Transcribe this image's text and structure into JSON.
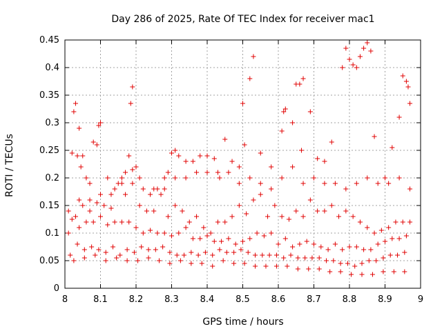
{
  "chart_data": {
    "type": "scatter",
    "title": "Day 286 of 2025, Rate Of TEC Index for receiver mac1",
    "xlabel": "GPS time / hours",
    "ylabel": "ROTI / TECUs",
    "xlim": [
      8,
      9
    ],
    "ylim": [
      0,
      0.45
    ],
    "xticks": [
      "8",
      "8.1",
      "8.2",
      "8.3",
      "8.4",
      "8.5",
      "8.6",
      "8.7",
      "8.8",
      "8.9",
      "9"
    ],
    "yticks": [
      "0",
      "0.05",
      "0.1",
      "0.15",
      "0.2",
      "0.25",
      "0.3",
      "0.35",
      "0.4",
      "0.45"
    ],
    "grid": true,
    "marker": "+",
    "color": "#e00000",
    "series": [
      {
        "name": "ROTI",
        "x": [
          8.02,
          8.025,
          8.03,
          8.035,
          8.04,
          8.045,
          8.05,
          8.06,
          8.07,
          8.08,
          8.09,
          8.095,
          8.1,
          8.12,
          8.14,
          8.16,
          8.17,
          8.18,
          8.185,
          8.19,
          8.2,
          8.21,
          8.24,
          8.26,
          8.28,
          8.29,
          8.3,
          8.31,
          8.32,
          8.34,
          8.36,
          8.38,
          8.4,
          8.42,
          8.435,
          8.45,
          8.47,
          8.49,
          8.5,
          8.505,
          8.52,
          8.53,
          8.55,
          8.58,
          8.61,
          8.615,
          8.62,
          8.64,
          8.65,
          8.66,
          8.665,
          8.67,
          8.69,
          8.71,
          8.73,
          8.75,
          8.78,
          8.79,
          8.8,
          8.81,
          8.82,
          8.83,
          8.84,
          8.85,
          8.86,
          8.87,
          8.9,
          8.92,
          8.94,
          8.95,
          8.96,
          8.965,
          8.97,
          8.01,
          8.03,
          8.05,
          8.07,
          8.09,
          8.11,
          8.13,
          8.15,
          8.17,
          8.19,
          8.21,
          8.23,
          8.25,
          8.27,
          8.29,
          8.31,
          8.33,
          8.35,
          8.37,
          8.39,
          8.41,
          8.43,
          8.45,
          8.47,
          8.49,
          8.51,
          8.53,
          8.55,
          8.57,
          8.59,
          8.61,
          8.63,
          8.65,
          8.67,
          8.69,
          8.71,
          8.73,
          8.75,
          8.77,
          8.79,
          8.81,
          8.83,
          8.85,
          8.87,
          8.89,
          8.91,
          8.93,
          8.95,
          8.97,
          8.02,
          8.04,
          8.06,
          8.08,
          8.1,
          8.12,
          8.14,
          8.16,
          8.18,
          8.2,
          8.22,
          8.24,
          8.26,
          8.28,
          8.3,
          8.32,
          8.34,
          8.36,
          8.38,
          8.4,
          8.42,
          8.44,
          8.46,
          8.48,
          8.5,
          8.52,
          8.54,
          8.56,
          8.58,
          8.6,
          8.62,
          8.64,
          8.66,
          8.68,
          8.7,
          8.72,
          8.74,
          8.76,
          8.78,
          8.8,
          8.82,
          8.84,
          8.86,
          8.88,
          8.9,
          8.92,
          8.94,
          8.96,
          8.015,
          8.035,
          8.055,
          8.075,
          8.095,
          8.115,
          8.135,
          8.155,
          8.175,
          8.195,
          8.215,
          8.235,
          8.255,
          8.275,
          8.295,
          8.315,
          8.335,
          8.355,
          8.375,
          8.395,
          8.415,
          8.435,
          8.455,
          8.475,
          8.495,
          8.515,
          8.535,
          8.555,
          8.575,
          8.595,
          8.615,
          8.635,
          8.655,
          8.675,
          8.695,
          8.715,
          8.735,
          8.755,
          8.775,
          8.795,
          8.815,
          8.835,
          8.855,
          8.875,
          8.895,
          8.915,
          8.935,
          8.955,
          8.01,
          8.04,
          8.07,
          8.1,
          8.13,
          8.16,
          8.19,
          8.22,
          8.25,
          8.28,
          8.31,
          8.34,
          8.37,
          8.4,
          8.43,
          8.46,
          8.49,
          8.52,
          8.55,
          8.58,
          8.61,
          8.64,
          8.67,
          8.7,
          8.73,
          8.76,
          8.79,
          8.82,
          8.85,
          8.88,
          8.91,
          8.94,
          8.97,
          8.025,
          8.055,
          8.085,
          8.115,
          8.145,
          8.175,
          8.205,
          8.235,
          8.265,
          8.295,
          8.325,
          8.355,
          8.385,
          8.415,
          8.445,
          8.475,
          8.505,
          8.535,
          8.565,
          8.595,
          8.625,
          8.655,
          8.685,
          8.715,
          8.745,
          8.775,
          8.805,
          8.835,
          8.865,
          8.895,
          8.925,
          8.955
        ],
        "y": [
          0.245,
          0.32,
          0.335,
          0.24,
          0.29,
          0.22,
          0.24,
          0.2,
          0.19,
          0.265,
          0.26,
          0.295,
          0.3,
          0.2,
          0.18,
          0.2,
          0.21,
          0.24,
          0.335,
          0.365,
          0.22,
          0.2,
          0.17,
          0.18,
          0.18,
          0.21,
          0.245,
          0.25,
          0.24,
          0.23,
          0.23,
          0.24,
          0.24,
          0.235,
          0.2,
          0.27,
          0.23,
          0.22,
          0.335,
          0.26,
          0.38,
          0.42,
          0.245,
          0.22,
          0.285,
          0.32,
          0.325,
          0.3,
          0.37,
          0.37,
          0.25,
          0.38,
          0.32,
          0.235,
          0.23,
          0.265,
          0.4,
          0.435,
          0.415,
          0.405,
          0.4,
          0.42,
          0.435,
          0.445,
          0.43,
          0.275,
          0.2,
          0.255,
          0.31,
          0.385,
          0.375,
          0.365,
          0.335,
          0.1,
          0.13,
          0.15,
          0.14,
          0.155,
          0.15,
          0.145,
          0.19,
          0.17,
          0.215,
          0.15,
          0.14,
          0.14,
          0.17,
          0.13,
          0.15,
          0.14,
          0.12,
          0.13,
          0.11,
          0.1,
          0.12,
          0.12,
          0.13,
          0.15,
          0.135,
          0.16,
          0.17,
          0.13,
          0.15,
          0.13,
          0.125,
          0.14,
          0.13,
          0.16,
          0.14,
          0.14,
          0.15,
          0.13,
          0.14,
          0.13,
          0.12,
          0.11,
          0.1,
          0.105,
          0.11,
          0.12,
          0.12,
          0.12,
          0.125,
          0.11,
          0.12,
          0.12,
          0.13,
          0.115,
          0.12,
          0.12,
          0.12,
          0.11,
          0.1,
          0.105,
          0.1,
          0.1,
          0.095,
          0.1,
          0.11,
          0.09,
          0.09,
          0.095,
          0.085,
          0.085,
          0.09,
          0.08,
          0.085,
          0.09,
          0.1,
          0.095,
          0.1,
          0.08,
          0.09,
          0.075,
          0.08,
          0.085,
          0.08,
          0.075,
          0.07,
          0.08,
          0.07,
          0.075,
          0.075,
          0.07,
          0.07,
          0.08,
          0.085,
          0.09,
          0.09,
          0.095,
          0.06,
          0.08,
          0.07,
          0.075,
          0.07,
          0.065,
          0.075,
          0.06,
          0.07,
          0.065,
          0.075,
          0.07,
          0.07,
          0.075,
          0.065,
          0.06,
          0.06,
          0.065,
          0.06,
          0.065,
          0.06,
          0.07,
          0.065,
          0.065,
          0.07,
          0.065,
          0.06,
          0.06,
          0.06,
          0.06,
          0.055,
          0.06,
          0.055,
          0.055,
          0.055,
          0.055,
          0.05,
          0.05,
          0.045,
          0.045,
          0.04,
          0.045,
          0.05,
          0.05,
          0.055,
          0.06,
          0.06,
          0.065,
          0.14,
          0.16,
          0.16,
          0.17,
          0.17,
          0.19,
          0.19,
          0.18,
          0.18,
          0.2,
          0.2,
          0.2,
          0.21,
          0.21,
          0.21,
          0.21,
          0.19,
          0.2,
          0.19,
          0.18,
          0.2,
          0.22,
          0.19,
          0.2,
          0.19,
          0.19,
          0.18,
          0.19,
          0.2,
          0.19,
          0.19,
          0.2,
          0.18,
          0.05,
          0.055,
          0.06,
          0.05,
          0.055,
          0.05,
          0.05,
          0.055,
          0.05,
          0.045,
          0.05,
          0.045,
          0.045,
          0.04,
          0.05,
          0.045,
          0.045,
          0.04,
          0.04,
          0.04,
          0.04,
          0.035,
          0.035,
          0.035,
          0.03,
          0.03,
          0.025,
          0.025,
          0.025,
          0.03,
          0.03,
          0.03
        ]
      }
    ]
  }
}
